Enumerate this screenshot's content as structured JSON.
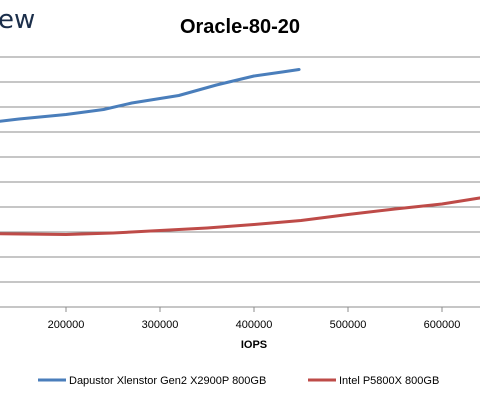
{
  "watermark": "ew",
  "chart_data": {
    "type": "line",
    "title": "Oracle-80-20",
    "xlabel": "IOPS",
    "ylabel": "",
    "x_ticks": [
      200000,
      300000,
      400000,
      500000,
      600000
    ],
    "x_tick_labels": [
      "200000",
      "300000",
      "400000",
      "500000",
      "600000"
    ],
    "grid": true,
    "legend_position": "bottom",
    "series": [
      {
        "name": "Dapustor Xlenstor Gen2 X2900P 800GB",
        "color": "#4a7ebb",
        "points": [
          [
            110000,
            36.7
          ],
          [
            150000,
            37.6
          ],
          [
            200000,
            38.5
          ],
          [
            240000,
            39.5
          ],
          [
            270000,
            40.8
          ],
          [
            320000,
            42.3
          ],
          [
            360000,
            44.4
          ],
          [
            400000,
            46.2
          ],
          [
            430000,
            47.0
          ],
          [
            448000,
            47.5
          ]
        ]
      },
      {
        "name": "Intel P5800X 800GB",
        "color": "#be4b48",
        "points": [
          [
            110000,
            14.7
          ],
          [
            200000,
            14.5
          ],
          [
            250000,
            14.8
          ],
          [
            300000,
            15.3
          ],
          [
            350000,
            15.8
          ],
          [
            400000,
            16.5
          ],
          [
            450000,
            17.3
          ],
          [
            500000,
            18.5
          ],
          [
            550000,
            19.6
          ],
          [
            600000,
            20.6
          ],
          [
            640000,
            21.8
          ],
          [
            650000,
            22.2
          ]
        ]
      }
    ]
  }
}
